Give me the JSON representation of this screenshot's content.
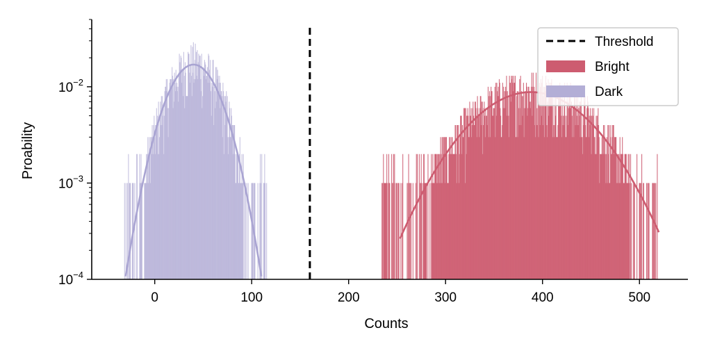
{
  "chart_data": {
    "type": "histogram",
    "title": "",
    "xlabel": "Counts",
    "ylabel": "Proability",
    "xlim": [
      -65,
      550
    ],
    "ylim": [
      0.0001,
      0.05
    ],
    "yscale": "log",
    "xticks": [
      0,
      100,
      200,
      300,
      400,
      500
    ],
    "xtick_labels": [
      "0",
      "100",
      "200",
      "300",
      "400",
      "500"
    ],
    "yticks": [
      {
        "value": 0.01,
        "base": "10",
        "exp": "−2"
      },
      {
        "value": 0.001,
        "base": "10",
        "exp": "−3"
      },
      {
        "value": 0.0001,
        "base": "10",
        "exp": "−4"
      }
    ],
    "threshold": {
      "name": "Threshold",
      "x": 160,
      "color": "#000000"
    },
    "series": [
      {
        "name": "Dark",
        "color": "#b3aed6",
        "opacity": 0.75,
        "range": [
          -33,
          115
        ],
        "fit": {
          "type": "gaussian",
          "peak": 0.017,
          "mean": 40,
          "sigma": 22,
          "x_range": [
            -33,
            115
          ]
        }
      },
      {
        "name": "Bright",
        "color": "#cd5c70",
        "opacity": 0.9,
        "range": [
          234,
          520
        ],
        "fit": {
          "type": "gaussian",
          "peak": 0.0088,
          "mean": 388,
          "sigma": 51,
          "x_range": [
            253,
            520
          ]
        }
      }
    ],
    "legend": {
      "placement": "top-right",
      "entries": [
        {
          "label": "Threshold",
          "kind": "dashed-line",
          "color": "#000000"
        },
        {
          "label": "Bright",
          "kind": "patch",
          "color": "#cd5c70"
        },
        {
          "label": "Dark",
          "kind": "patch",
          "color": "#b3aed6"
        }
      ]
    },
    "grid": false
  }
}
